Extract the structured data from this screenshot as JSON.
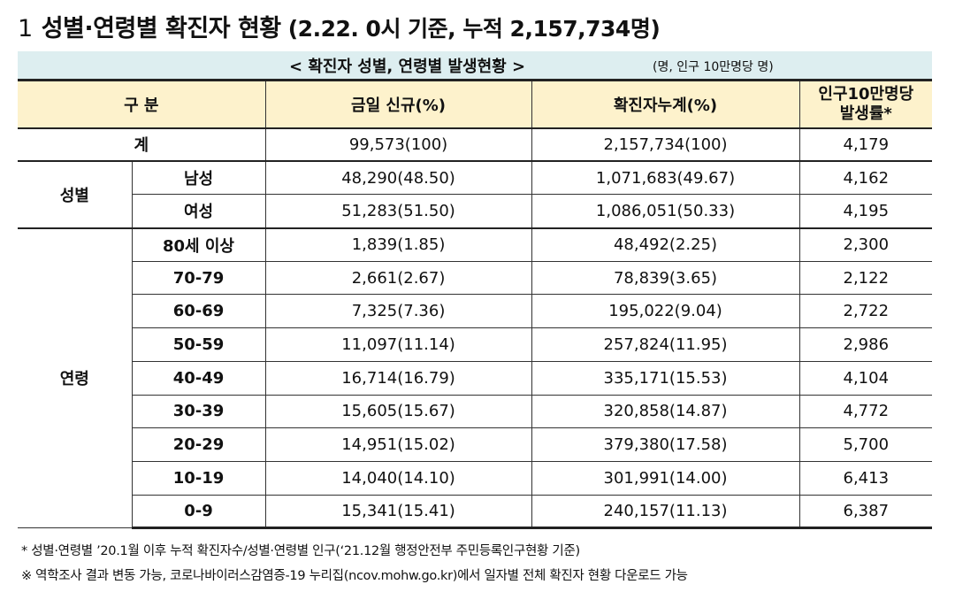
{
  "title": {
    "number": "1",
    "main": "성별·연령별 확진자 현황",
    "sub": "(2.22. 0시 기준, 누적 2,157,734명)"
  },
  "caption": {
    "text": "< 확진자 성별, 연령별 발생현황 >",
    "unit": "(명, 인구 10만명당 명)"
  },
  "table": {
    "headers": {
      "category": "구 분",
      "new": "금일 신규(%)",
      "cumulative": "확진자누계(%)",
      "rate_line1": "인구10만명당",
      "rate_line2": "발생률*"
    },
    "total": {
      "label": "계",
      "new": "99,573(100)",
      "cumulative": "2,157,734(100)",
      "rate": "4,179"
    },
    "sex": {
      "group_label": "성별",
      "rows": [
        {
          "label": "남성",
          "new": "48,290(48.50)",
          "cumulative": "1,071,683(49.67)",
          "rate": "4,162"
        },
        {
          "label": "여성",
          "new": "51,283(51.50)",
          "cumulative": "1,086,051(50.33)",
          "rate": "4,195"
        }
      ]
    },
    "age": {
      "group_label": "연령",
      "rows": [
        {
          "label": "80세 이상",
          "new": "1,839(1.85)",
          "cumulative": "48,492(2.25)",
          "rate": "2,300"
        },
        {
          "label": "70-79",
          "new": "2,661(2.67)",
          "cumulative": "78,839(3.65)",
          "rate": "2,122"
        },
        {
          "label": "60-69",
          "new": "7,325(7.36)",
          "cumulative": "195,022(9.04)",
          "rate": "2,722"
        },
        {
          "label": "50-59",
          "new": "11,097(11.14)",
          "cumulative": "257,824(11.95)",
          "rate": "2,986"
        },
        {
          "label": "40-49",
          "new": "16,714(16.79)",
          "cumulative": "335,171(15.53)",
          "rate": "4,104"
        },
        {
          "label": "30-39",
          "new": "15,605(15.67)",
          "cumulative": "320,858(14.87)",
          "rate": "4,772"
        },
        {
          "label": "20-29",
          "new": "14,951(15.02)",
          "cumulative": "379,380(17.58)",
          "rate": "5,700"
        },
        {
          "label": "10-19",
          "new": "14,040(14.10)",
          "cumulative": "301,991(14.00)",
          "rate": "6,413"
        },
        {
          "label": "0-9",
          "new": "15,341(15.41)",
          "cumulative": "240,157(11.13)",
          "rate": "6,387"
        }
      ]
    }
  },
  "notes": {
    "note1": "* 성별·연령별 ’20.1월 이후 누적 확진자수/성별·연령별 인구(‘21.12월 행정안전부 주민등록인구현황 기준)",
    "note2": "※ 역학조사 결과 변동 가능, 코로나바이러스감염증-19 누리집(ncov.mohw.go.kr)에서 일자별 전체 확진자 현황 다운로드 가능"
  }
}
